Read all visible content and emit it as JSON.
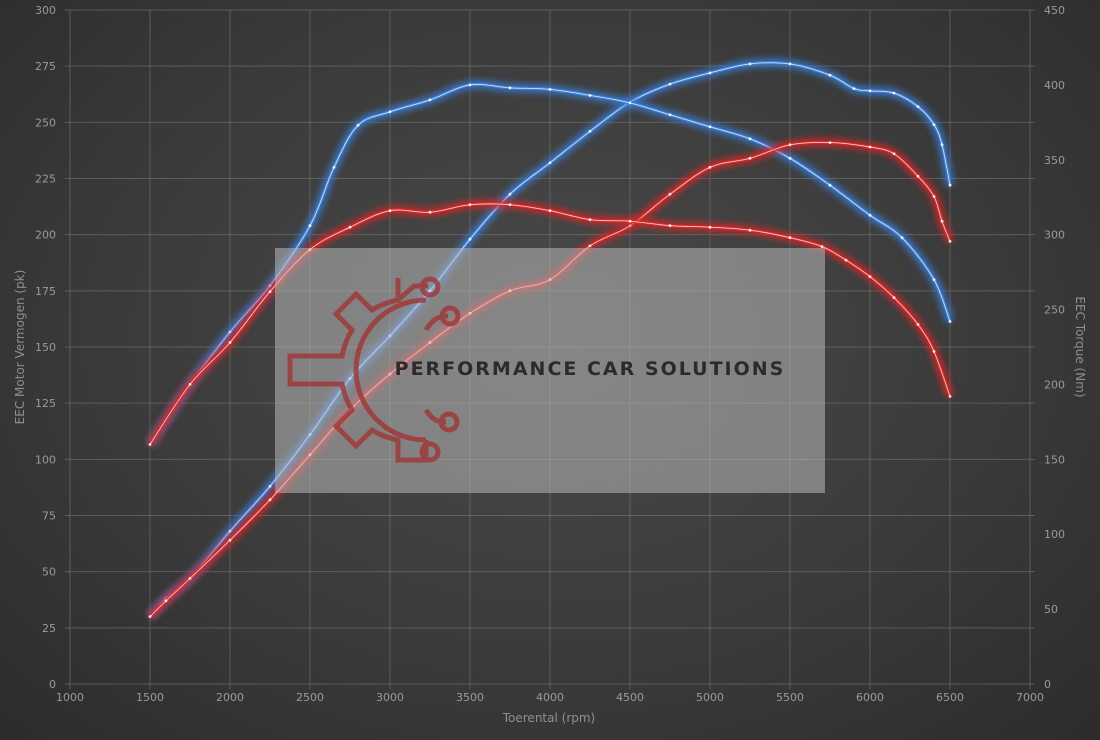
{
  "chart_data": {
    "type": "line",
    "xlabel": "Toerental (rpm)",
    "ylabel_left": "EEC Motor Vermogen (pk)",
    "ylabel_right": "EEC Torque (Nm)",
    "xlim": [
      1000,
      7000
    ],
    "ylim_left": [
      0,
      300
    ],
    "ylim_right": [
      0,
      450
    ],
    "x_ticks": [
      1000,
      1500,
      2000,
      2500,
      3000,
      3500,
      4000,
      4500,
      5000,
      5500,
      6000,
      6500,
      7000
    ],
    "y_left_ticks": [
      0,
      25,
      50,
      75,
      100,
      125,
      150,
      175,
      200,
      225,
      250,
      275,
      300
    ],
    "y_right_ticks": [
      0,
      50,
      100,
      150,
      200,
      250,
      300,
      350,
      400,
      450
    ],
    "grid": true,
    "series": [
      {
        "axis": "left",
        "color": "#3b7fd9",
        "points": [
          [
            1500,
            30
          ],
          [
            1600,
            38
          ],
          [
            1750,
            47
          ],
          [
            2000,
            68
          ],
          [
            2250,
            88
          ],
          [
            2500,
            111
          ],
          [
            2750,
            136
          ],
          [
            3000,
            155
          ],
          [
            3250,
            175
          ],
          [
            3500,
            198
          ],
          [
            3750,
            218
          ],
          [
            4000,
            232
          ],
          [
            4250,
            246
          ],
          [
            4500,
            259
          ],
          [
            4750,
            267
          ],
          [
            5000,
            272
          ],
          [
            5250,
            276
          ],
          [
            5500,
            276
          ],
          [
            5750,
            271
          ],
          [
            5900,
            265
          ],
          [
            6000,
            264
          ],
          [
            6150,
            263
          ],
          [
            6300,
            257
          ],
          [
            6400,
            249
          ],
          [
            6450,
            240
          ],
          [
            6500,
            222
          ]
        ]
      },
      {
        "axis": "right",
        "color": "#3b7fd9",
        "points": [
          [
            1500,
            160
          ],
          [
            1750,
            200
          ],
          [
            2000,
            235
          ],
          [
            2250,
            266
          ],
          [
            2500,
            306
          ],
          [
            2650,
            345
          ],
          [
            2800,
            373
          ],
          [
            3000,
            382
          ],
          [
            3250,
            390
          ],
          [
            3500,
            400
          ],
          [
            3750,
            398
          ],
          [
            4000,
            397
          ],
          [
            4250,
            393
          ],
          [
            4500,
            388
          ],
          [
            4750,
            380
          ],
          [
            5000,
            372
          ],
          [
            5250,
            364
          ],
          [
            5500,
            351
          ],
          [
            5750,
            333
          ],
          [
            6000,
            313
          ],
          [
            6200,
            298
          ],
          [
            6400,
            270
          ],
          [
            6500,
            242
          ]
        ]
      },
      {
        "axis": "left",
        "color": "#d92626",
        "points": [
          [
            1500,
            30
          ],
          [
            1600,
            37
          ],
          [
            1750,
            47
          ],
          [
            2000,
            64
          ],
          [
            2250,
            82
          ],
          [
            2500,
            102
          ],
          [
            2750,
            122
          ],
          [
            3000,
            138
          ],
          [
            3250,
            152
          ],
          [
            3500,
            165
          ],
          [
            3750,
            175
          ],
          [
            4000,
            180
          ],
          [
            4250,
            195
          ],
          [
            4500,
            204
          ],
          [
            4750,
            218
          ],
          [
            5000,
            230
          ],
          [
            5250,
            234
          ],
          [
            5500,
            240
          ],
          [
            5750,
            241
          ],
          [
            6000,
            239
          ],
          [
            6150,
            236
          ],
          [
            6300,
            226
          ],
          [
            6400,
            217
          ],
          [
            6450,
            206
          ],
          [
            6500,
            197
          ]
        ]
      },
      {
        "axis": "right",
        "color": "#d92626",
        "points": [
          [
            1500,
            160
          ],
          [
            1750,
            200
          ],
          [
            2000,
            228
          ],
          [
            2250,
            262
          ],
          [
            2500,
            290
          ],
          [
            2750,
            305
          ],
          [
            3000,
            316
          ],
          [
            3250,
            315
          ],
          [
            3500,
            320
          ],
          [
            3750,
            320
          ],
          [
            4000,
            316
          ],
          [
            4250,
            310
          ],
          [
            4500,
            309
          ],
          [
            4750,
            306
          ],
          [
            5000,
            305
          ],
          [
            5250,
            303
          ],
          [
            5500,
            298
          ],
          [
            5700,
            292
          ],
          [
            5850,
            283
          ],
          [
            6000,
            272
          ],
          [
            6150,
            258
          ],
          [
            6300,
            240
          ],
          [
            6400,
            222
          ],
          [
            6500,
            192
          ]
        ]
      }
    ]
  },
  "watermark": {
    "text": "PERFORMANCE CAR SOLUTIONS",
    "logo": "gear-circuit-icon",
    "logo_color": "#a03a3a"
  }
}
